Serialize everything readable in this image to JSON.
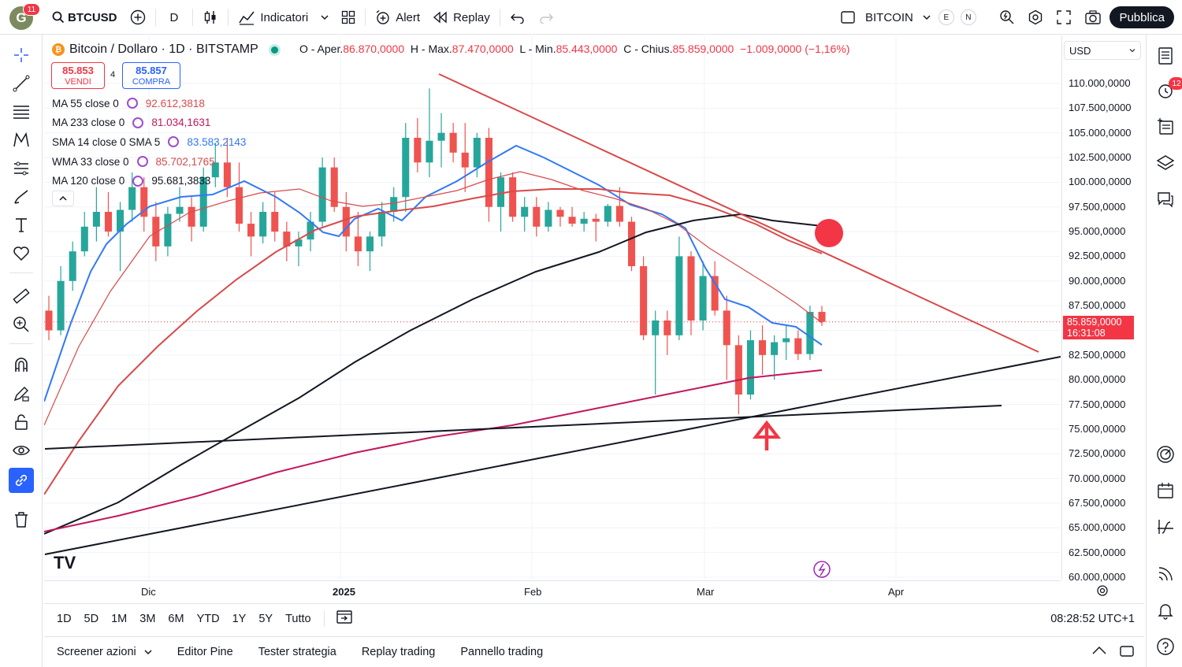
{
  "topbar": {
    "avatar_letter": "G",
    "avatar_badge": "11",
    "symbol": "BTCUSD",
    "interval": "D",
    "indicators_label": "Indicatori",
    "alert_label": "Alert",
    "replay_label": "Replay",
    "layout_name": "BITCOIN",
    "badge_e": "E",
    "badge_n": "N",
    "publish_label": "Pubblica"
  },
  "legend": {
    "title": "Bitcoin / Dollaro · 1D · BITSTAMP",
    "open_label": "O - Aper.",
    "open": "86.870,0000",
    "high_label": "H - Max.",
    "high": "87.470,0000",
    "low_label": "L - Min.",
    "low": "85.443,0000",
    "close_label": "C - Chius.",
    "close": "85.859,0000",
    "change": "−1.009,0000 (−1,16%)",
    "sell_price": "85.853",
    "sell_label": "VENDI",
    "spread": "4",
    "buy_price": "85.857",
    "buy_label": "COMPRA"
  },
  "indicators": [
    {
      "name": "MA 55 close 0",
      "value": "92.612,3818",
      "color": "#d84a4a"
    },
    {
      "name": "MA 233 close 0",
      "value": "81.034,1631",
      "color": "#c2185b"
    },
    {
      "name": "SMA 14 close 0 SMA 5",
      "value": "83.583,2143",
      "color": "#3179f5"
    },
    {
      "name": "WMA 33 close 0",
      "value": "85.702,1765",
      "color": "#d84a4a"
    },
    {
      "name": "MA 120 close 0",
      "value": "95.681,3833",
      "color": "#131722"
    }
  ],
  "price_scale": {
    "currency": "USD",
    "ticks": [
      "110.000,0000",
      "107.500,0000",
      "105.000,0000",
      "102.500,0000",
      "100.000,0000",
      "97.500,0000",
      "95.000,0000",
      "92.500,0000",
      "90.000,0000",
      "87.500,0000",
      "82.500,0000",
      "80.000,0000",
      "77.500,0000",
      "75.000,0000",
      "72.500,0000",
      "70.000,0000",
      "67.500,0000",
      "65.000,0000",
      "62.500,0000",
      "60.000,0000"
    ],
    "current_price": "85.859,0000",
    "countdown": "16:31:08"
  },
  "time_scale": {
    "ticks": [
      "Dic",
      "2025",
      "Feb",
      "Mar",
      "Apr"
    ]
  },
  "ranges": [
    "1D",
    "5D",
    "1M",
    "3M",
    "6M",
    "YTD",
    "1Y",
    "5Y",
    "Tutto"
  ],
  "clock": "08:28:52 UTC+1",
  "bottom_tabs": [
    "Screener azioni",
    "Editor Pine",
    "Tester strategia",
    "Replay trading",
    "Pannello trading"
  ],
  "right_badge": "12",
  "watermark": "TV",
  "colors": {
    "up": "#26a69a",
    "down": "#ef5350",
    "accent": "#2962ff",
    "annotation": "#f23645"
  },
  "chart_data": {
    "type": "candlestick",
    "symbol": "BTCUSD",
    "interval": "1D",
    "x_ticks": [
      "Dic",
      "2025",
      "Feb",
      "Mar",
      "Apr"
    ],
    "ylim": [
      60000,
      110000
    ],
    "candles_approx": [
      [
        87000,
        88500,
        84000,
        85000
      ],
      [
        85000,
        91500,
        84500,
        90000
      ],
      [
        90000,
        94000,
        89000,
        93000
      ],
      [
        93000,
        97000,
        92500,
        95500
      ],
      [
        95500,
        99500,
        94000,
        97000
      ],
      [
        97000,
        99000,
        94500,
        95000
      ],
      [
        95000,
        98000,
        91000,
        97200
      ],
      [
        97200,
        101000,
        96000,
        99500
      ],
      [
        99500,
        100500,
        95000,
        96500
      ],
      [
        96500,
        98000,
        92000,
        93500
      ],
      [
        93500,
        97500,
        92500,
        96800
      ],
      [
        96800,
        99500,
        96000,
        97500
      ],
      [
        97500,
        98500,
        94000,
        95500
      ],
      [
        95500,
        101500,
        95000,
        100500
      ],
      [
        100500,
        104000,
        99500,
        102000
      ],
      [
        102000,
        104500,
        98500,
        99500
      ],
      [
        99500,
        102000,
        95000,
        95800
      ],
      [
        95800,
        97000,
        92500,
        94500
      ],
      [
        94500,
        98000,
        93800,
        97000
      ],
      [
        97000,
        99000,
        94000,
        95000
      ],
      [
        95000,
        96000,
        92000,
        93500
      ],
      [
        93500,
        95000,
        91500,
        94200
      ],
      [
        94200,
        97000,
        93000,
        96000
      ],
      [
        96000,
        102500,
        95500,
        101500
      ],
      [
        101500,
        102500,
        97000,
        97500
      ],
      [
        97500,
        99000,
        93000,
        94500
      ],
      [
        94500,
        97000,
        91500,
        93000
      ],
      [
        93000,
        95000,
        91000,
        94500
      ],
      [
        94500,
        98000,
        93500,
        97000
      ],
      [
        97000,
        99500,
        96000,
        98500
      ],
      [
        98500,
        106000,
        97000,
        104500
      ],
      [
        104500,
        106500,
        101000,
        102000
      ],
      [
        102000,
        109500,
        100500,
        104200
      ],
      [
        104200,
        107000,
        101500,
        105000
      ],
      [
        105000,
        106000,
        102000,
        103000
      ],
      [
        103000,
        106000,
        99000,
        101500
      ],
      [
        101500,
        105000,
        100500,
        104500
      ],
      [
        104500,
        105500,
        96000,
        97500
      ],
      [
        97500,
        101000,
        95000,
        100500
      ],
      [
        100500,
        101000,
        96000,
        96500
      ],
      [
        96500,
        98500,
        95000,
        97500
      ],
      [
        97500,
        98500,
        94500,
        95500
      ],
      [
        95500,
        98000,
        95000,
        97200
      ],
      [
        97200,
        97500,
        95500,
        96500
      ],
      [
        96500,
        97500,
        95500,
        95800
      ],
      [
        95800,
        97000,
        95000,
        96300
      ],
      [
        96300,
        96800,
        94000,
        96000
      ],
      [
        96000,
        97800,
        95500,
        97600
      ],
      [
        97600,
        99500,
        95500,
        96000
      ],
      [
        96000,
        96500,
        91000,
        91500
      ],
      [
        91500,
        92500,
        84000,
        84500
      ],
      [
        84500,
        87000,
        78500,
        86000
      ],
      [
        86000,
        87000,
        82500,
        84500
      ],
      [
        84500,
        94500,
        84000,
        92500
      ],
      [
        92500,
        93000,
        84500,
        86000
      ],
      [
        86000,
        92000,
        85000,
        90500
      ],
      [
        90500,
        92000,
        86500,
        87000
      ],
      [
        87000,
        88500,
        80000,
        83500
      ],
      [
        83500,
        84500,
        76500,
        78500
      ],
      [
        78500,
        85000,
        78000,
        84000
      ],
      [
        84000,
        85500,
        80500,
        82500
      ],
      [
        82500,
        84500,
        80000,
        83800
      ],
      [
        83800,
        85500,
        82000,
        84200
      ],
      [
        84200,
        85000,
        82000,
        82600
      ],
      [
        82600,
        87500,
        82000,
        86870
      ],
      [
        86870,
        87470,
        85443,
        85859
      ]
    ],
    "series": [
      {
        "name": "MA 55 close 0",
        "last": 92612.3818
      },
      {
        "name": "MA 233 close 0",
        "last": 81034.1631
      },
      {
        "name": "SMA 14 close 0 SMA 5",
        "last": 83583.2143
      },
      {
        "name": "WMA 33 close 0",
        "last": 85702.1765
      },
      {
        "name": "MA 120 close 0",
        "last": 95681.3833
      }
    ]
  }
}
